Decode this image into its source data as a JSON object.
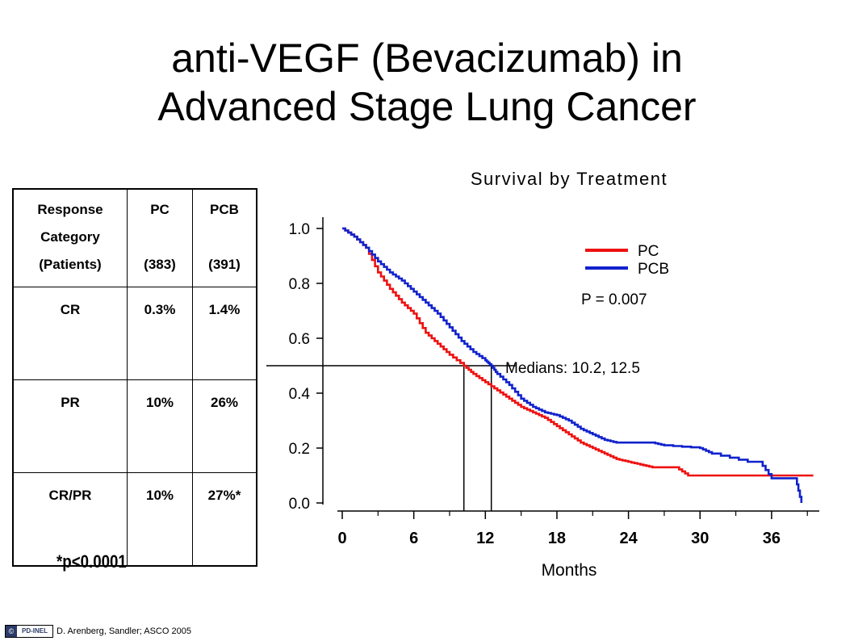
{
  "title": {
    "line1": "anti-VEGF (Bevacizumab) in",
    "line2": "Advanced Stage Lung Cancer"
  },
  "table": {
    "headers": [
      [
        "Response",
        "Category",
        "(Patients)"
      ],
      [
        "PC",
        "",
        "(383)"
      ],
      [
        "PCB",
        "",
        "(391)"
      ]
    ],
    "rows": [
      [
        "CR",
        "0.3%",
        "1.4%"
      ],
      [
        "PR",
        "10%",
        "26%"
      ],
      [
        "CR/PR",
        "10%",
        "27%*"
      ]
    ]
  },
  "footnote": "*p<0.0001",
  "credit": {
    "logo_text": "PD-INEL",
    "text": "D. Arenberg, Sandler;  ASCO 2005"
  },
  "chart_data": {
    "type": "line",
    "title": "Survival by Treatment",
    "xlabel": "Months",
    "ylabel": "",
    "xlim": [
      0,
      40
    ],
    "ylim": [
      0,
      1.0
    ],
    "xticks": [
      0,
      6,
      12,
      18,
      24,
      30,
      36
    ],
    "xtick_labels": [
      "0",
      "6",
      "12",
      "18",
      "24",
      "30",
      "36"
    ],
    "yticks": [
      0,
      0.2,
      0.4,
      0.6,
      0.8,
      1.0
    ],
    "ytick_labels": [
      "0.0",
      "0.2",
      "0.4",
      "0.6",
      "0.8",
      "1.0"
    ],
    "legend_position": "top-right",
    "p_value": "P = 0.007",
    "medians": [
      10.2,
      12.5
    ],
    "median_label": "Medians: 10.2, 12.5",
    "series": [
      {
        "name": "PC",
        "color": "#ee1111",
        "points": [
          [
            0,
            1.0
          ],
          [
            1,
            0.97
          ],
          [
            2,
            0.93
          ],
          [
            3,
            0.84
          ],
          [
            4,
            0.78
          ],
          [
            5,
            0.73
          ],
          [
            6,
            0.69
          ],
          [
            7,
            0.62
          ],
          [
            8,
            0.58
          ],
          [
            9,
            0.54
          ],
          [
            10.2,
            0.5
          ],
          [
            11,
            0.47
          ],
          [
            12,
            0.44
          ],
          [
            13,
            0.41
          ],
          [
            14,
            0.38
          ],
          [
            15,
            0.35
          ],
          [
            16,
            0.33
          ],
          [
            17,
            0.31
          ],
          [
            18,
            0.28
          ],
          [
            19,
            0.25
          ],
          [
            20,
            0.22
          ],
          [
            21,
            0.2
          ],
          [
            22,
            0.18
          ],
          [
            23,
            0.16
          ],
          [
            24,
            0.15
          ],
          [
            25,
            0.14
          ],
          [
            26,
            0.13
          ],
          [
            28,
            0.13
          ],
          [
            29,
            0.1
          ],
          [
            32,
            0.1
          ],
          [
            36,
            0.1
          ],
          [
            38,
            0.1
          ],
          [
            39.5,
            0.1
          ]
        ]
      },
      {
        "name": "PCB",
        "color": "#1122cc",
        "points": [
          [
            0,
            1.0
          ],
          [
            1,
            0.97
          ],
          [
            2,
            0.93
          ],
          [
            3,
            0.88
          ],
          [
            4,
            0.84
          ],
          [
            5,
            0.81
          ],
          [
            6,
            0.77
          ],
          [
            7,
            0.73
          ],
          [
            8,
            0.69
          ],
          [
            9,
            0.64
          ],
          [
            10,
            0.59
          ],
          [
            11,
            0.55
          ],
          [
            12,
            0.52
          ],
          [
            12.5,
            0.5
          ],
          [
            13,
            0.47
          ],
          [
            14,
            0.43
          ],
          [
            15,
            0.38
          ],
          [
            16,
            0.35
          ],
          [
            17,
            0.33
          ],
          [
            18,
            0.32
          ],
          [
            19,
            0.3
          ],
          [
            20,
            0.27
          ],
          [
            21,
            0.25
          ],
          [
            22,
            0.23
          ],
          [
            23,
            0.22
          ],
          [
            26,
            0.22
          ],
          [
            27,
            0.21
          ],
          [
            30,
            0.2
          ],
          [
            31,
            0.18
          ],
          [
            34,
            0.15
          ],
          [
            35,
            0.15
          ],
          [
            36,
            0.09
          ],
          [
            38,
            0.09
          ],
          [
            38.5,
            0.0
          ]
        ]
      }
    ]
  }
}
